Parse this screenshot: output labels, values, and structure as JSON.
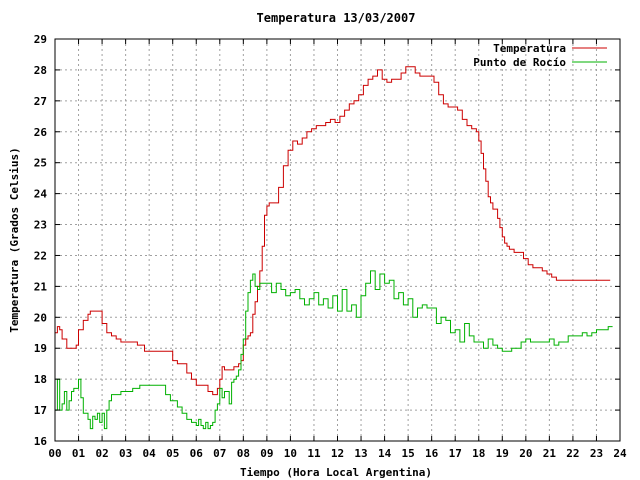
{
  "chart_data": {
    "type": "line",
    "title": "Temperatura 13/03/2007",
    "xlabel": "Tiempo (Hora Local Argentina)",
    "ylabel": "Temperatura (Grados Celsius)",
    "xlim": [
      0,
      24
    ],
    "ylim": [
      16,
      29
    ],
    "x_ticks": [
      "00",
      "01",
      "02",
      "03",
      "04",
      "05",
      "06",
      "07",
      "08",
      "09",
      "10",
      "11",
      "12",
      "13",
      "14",
      "15",
      "16",
      "17",
      "18",
      "19",
      "20",
      "21",
      "22",
      "23",
      "24"
    ],
    "y_ticks": [
      "16",
      "17",
      "18",
      "19",
      "20",
      "21",
      "22",
      "23",
      "24",
      "25",
      "26",
      "27",
      "28",
      "29"
    ],
    "grid": true,
    "legend": "top-right",
    "series": [
      {
        "name": "Temperatura",
        "color": "#cc0000",
        "x": [
          0,
          0.1,
          0.2,
          0.3,
          0.4,
          0.5,
          0.7,
          0.9,
          1.0,
          1.2,
          1.4,
          1.5,
          1.7,
          1.9,
          2.0,
          2.2,
          2.4,
          2.6,
          2.8,
          3.0,
          3.3,
          3.5,
          3.8,
          4.0,
          4.3,
          4.5,
          4.7,
          4.9,
          5.0,
          5.2,
          5.4,
          5.6,
          5.8,
          6.0,
          6.2,
          6.3,
          6.5,
          6.7,
          6.8,
          6.9,
          7.0,
          7.1,
          7.2,
          7.4,
          7.6,
          7.8,
          7.9,
          8.0,
          8.1,
          8.2,
          8.3,
          8.4,
          8.5,
          8.6,
          8.7,
          8.8,
          8.9,
          9.0,
          9.1,
          9.3,
          9.5,
          9.7,
          9.9,
          10.1,
          10.3,
          10.5,
          10.7,
          10.9,
          11.1,
          11.3,
          11.5,
          11.7,
          11.9,
          12.1,
          12.3,
          12.5,
          12.7,
          12.9,
          13.1,
          13.3,
          13.5,
          13.7,
          13.9,
          14.1,
          14.3,
          14.5,
          14.7,
          14.9,
          15.1,
          15.3,
          15.5,
          15.7,
          15.9,
          16.1,
          16.3,
          16.5,
          16.7,
          16.9,
          17.1,
          17.3,
          17.5,
          17.7,
          17.9,
          18.0,
          18.1,
          18.2,
          18.3,
          18.4,
          18.5,
          18.6,
          18.8,
          18.9,
          19.0,
          19.1,
          19.2,
          19.3,
          19.5,
          19.7,
          19.9,
          20.1,
          20.3,
          20.5,
          20.7,
          20.9,
          21.1,
          21.3,
          21.5,
          21.7,
          21.9,
          22.1,
          22.3,
          22.5,
          22.7,
          22.9,
          23.1,
          23.3,
          23.5
        ],
        "values": [
          19.5,
          19.7,
          19.6,
          19.3,
          19.3,
          19.0,
          19.0,
          19.1,
          19.6,
          19.9,
          20.1,
          20.2,
          20.2,
          20.2,
          19.8,
          19.5,
          19.4,
          19.3,
          19.2,
          19.2,
          19.2,
          19.1,
          18.9,
          18.9,
          18.9,
          18.9,
          18.9,
          18.9,
          18.6,
          18.5,
          18.5,
          18.2,
          18.0,
          17.8,
          17.8,
          17.8,
          17.6,
          17.5,
          17.5,
          17.7,
          18.0,
          18.4,
          18.3,
          18.3,
          18.4,
          18.5,
          18.6,
          19.1,
          19.3,
          19.4,
          19.5,
          20.1,
          20.5,
          21.0,
          21.5,
          22.3,
          23.3,
          23.6,
          23.7,
          23.7,
          24.2,
          24.9,
          25.4,
          25.7,
          25.6,
          25.8,
          26.0,
          26.1,
          26.2,
          26.2,
          26.3,
          26.4,
          26.3,
          26.5,
          26.7,
          26.9,
          27.0,
          27.2,
          27.5,
          27.7,
          27.8,
          28.0,
          27.7,
          27.6,
          27.7,
          27.7,
          27.9,
          28.1,
          28.1,
          27.9,
          27.8,
          27.8,
          27.8,
          27.6,
          27.2,
          26.9,
          26.8,
          26.8,
          26.7,
          26.4,
          26.2,
          26.1,
          26.0,
          25.7,
          25.3,
          24.8,
          24.4,
          23.9,
          23.7,
          23.5,
          23.2,
          22.9,
          22.6,
          22.4,
          22.3,
          22.2,
          22.1,
          22.1,
          21.9,
          21.7,
          21.6,
          21.6,
          21.5,
          21.4,
          21.3,
          21.2,
          21.2,
          21.2,
          21.2,
          21.2,
          21.2,
          21.2,
          21.2,
          21.2,
          21.2,
          21.2,
          21.2
        ]
      },
      {
        "name": "Punto de Rocío",
        "color": "#00b000",
        "x": [
          0,
          0.1,
          0.2,
          0.3,
          0.4,
          0.5,
          0.6,
          0.7,
          0.8,
          0.9,
          1.0,
          1.1,
          1.2,
          1.3,
          1.4,
          1.5,
          1.6,
          1.7,
          1.8,
          1.9,
          2.0,
          2.1,
          2.2,
          2.3,
          2.4,
          2.6,
          2.8,
          3.0,
          3.3,
          3.6,
          3.9,
          4.2,
          4.5,
          4.7,
          4.9,
          5.0,
          5.2,
          5.4,
          5.6,
          5.8,
          6.0,
          6.1,
          6.2,
          6.3,
          6.4,
          6.5,
          6.6,
          6.7,
          6.8,
          6.9,
          7.0,
          7.1,
          7.2,
          7.3,
          7.4,
          7.5,
          7.6,
          7.7,
          7.8,
          7.9,
          8.0,
          8.1,
          8.2,
          8.3,
          8.4,
          8.5,
          8.6,
          8.7,
          8.8,
          8.9,
          9.0,
          9.2,
          9.4,
          9.6,
          9.8,
          10.0,
          10.2,
          10.4,
          10.6,
          10.8,
          11.0,
          11.2,
          11.4,
          11.6,
          11.8,
          12.0,
          12.2,
          12.4,
          12.6,
          12.8,
          13.0,
          13.2,
          13.4,
          13.6,
          13.8,
          14.0,
          14.2,
          14.4,
          14.6,
          14.8,
          15.0,
          15.2,
          15.4,
          15.6,
          15.8,
          16.0,
          16.2,
          16.4,
          16.6,
          16.8,
          17.0,
          17.2,
          17.4,
          17.6,
          17.8,
          18.0,
          18.2,
          18.4,
          18.6,
          18.8,
          19.0,
          19.2,
          19.4,
          19.6,
          19.8,
          20.0,
          20.2,
          20.4,
          20.6,
          20.8,
          21.0,
          21.2,
          21.4,
          21.6,
          21.8,
          22.0,
          22.2,
          22.4,
          22.6,
          22.8,
          23.0,
          23.2,
          23.4,
          23.5,
          23.6
        ],
        "values": [
          17.0,
          18.0,
          17.0,
          17.2,
          17.6,
          17.0,
          17.3,
          17.6,
          17.7,
          17.7,
          18.0,
          17.4,
          16.9,
          16.9,
          16.7,
          16.4,
          16.8,
          16.7,
          16.9,
          16.6,
          16.9,
          16.4,
          17.0,
          17.3,
          17.5,
          17.5,
          17.6,
          17.6,
          17.7,
          17.8,
          17.8,
          17.8,
          17.8,
          17.5,
          17.3,
          17.3,
          17.1,
          16.9,
          16.7,
          16.6,
          16.5,
          16.7,
          16.5,
          16.4,
          16.6,
          16.4,
          16.5,
          16.6,
          17.0,
          17.2,
          17.7,
          17.4,
          17.6,
          17.6,
          17.2,
          17.9,
          18.0,
          18.1,
          18.3,
          18.8,
          19.3,
          20.2,
          20.8,
          21.2,
          21.4,
          21.0,
          20.9,
          21.1,
          21.1,
          21.1,
          21.1,
          20.8,
          21.1,
          20.9,
          20.7,
          20.8,
          20.9,
          20.6,
          20.4,
          20.6,
          20.8,
          20.4,
          20.6,
          20.3,
          20.7,
          20.2,
          20.9,
          20.2,
          20.4,
          20.0,
          20.7,
          21.1,
          21.5,
          20.9,
          21.4,
          21.1,
          21.2,
          20.6,
          20.8,
          20.4,
          20.6,
          20.0,
          20.3,
          20.4,
          20.3,
          20.3,
          19.8,
          20.0,
          19.9,
          19.5,
          19.6,
          19.2,
          19.8,
          19.4,
          19.2,
          19.2,
          19.0,
          19.3,
          19.1,
          19.0,
          18.9,
          18.9,
          19.0,
          19.0,
          19.2,
          19.3,
          19.2,
          19.2,
          19.2,
          19.2,
          19.3,
          19.1,
          19.2,
          19.2,
          19.4,
          19.4,
          19.4,
          19.5,
          19.4,
          19.5,
          19.6,
          19.6,
          19.6,
          19.7,
          19.7
        ]
      }
    ]
  }
}
